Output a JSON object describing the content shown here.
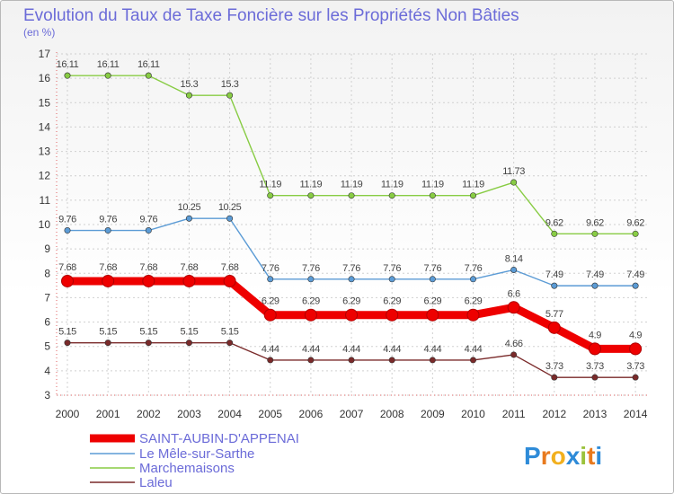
{
  "chart_data": {
    "type": "line",
    "title": "Evolution du Taux de Taxe Foncière sur les Propriétés Non Bâties",
    "subtitle": "(en %)",
    "xlabel": "",
    "ylabel": "(en %)",
    "ylim": [
      3,
      17
    ],
    "yticks": [
      "3",
      "4",
      "5",
      "6",
      "7",
      "8",
      "9",
      "10",
      "11",
      "12",
      "13",
      "14",
      "15",
      "16",
      "17"
    ],
    "grid": true,
    "legend_position": "bottom-left",
    "categories": [
      "2000",
      "2001",
      "2002",
      "2003",
      "2004",
      "2005",
      "2006",
      "2007",
      "2008",
      "2009",
      "2010",
      "2011",
      "2012",
      "2013",
      "2014"
    ],
    "series": [
      {
        "name": "SAINT-AUBIN-D'APPENAI",
        "color": "#ee0000",
        "emphasis": true,
        "values": [
          7.68,
          7.68,
          7.68,
          7.68,
          7.68,
          6.29,
          6.29,
          6.29,
          6.29,
          6.29,
          6.29,
          6.6,
          5.77,
          4.9,
          4.9
        ],
        "labels": [
          "7.68",
          "7.68",
          "7.68",
          "7.68",
          "7.68",
          "6.29",
          "6.29",
          "6.29",
          "6.29",
          "6.29",
          "6.29",
          "6.6",
          "5.77",
          "4.9",
          "4.9"
        ]
      },
      {
        "name": "Le Mêle-sur-Sarthe",
        "color": "#5b9bd5",
        "emphasis": false,
        "values": [
          9.76,
          9.76,
          9.76,
          10.25,
          10.25,
          7.76,
          7.76,
          7.76,
          7.76,
          7.76,
          7.76,
          8.14,
          7.49,
          7.49,
          7.49
        ],
        "labels": [
          "9.76",
          "9.76",
          "9.76",
          "10.25",
          "10.25",
          "7.76",
          "7.76",
          "7.76",
          "7.76",
          "7.76",
          "7.76",
          "8.14",
          "7.49",
          "7.49",
          "7.49"
        ]
      },
      {
        "name": "Marchemaisons",
        "color": "#88cc44",
        "emphasis": false,
        "values": [
          16.11,
          16.11,
          16.11,
          15.3,
          15.3,
          11.19,
          11.19,
          11.19,
          11.19,
          11.19,
          11.19,
          11.73,
          9.62,
          9.62,
          9.62
        ],
        "labels": [
          "16.11",
          "16.11",
          "16.11",
          "15.3",
          "15.3",
          "11.19",
          "11.19",
          "11.19",
          "11.19",
          "11.19",
          "11.19",
          "11.73",
          "9.62",
          "9.62",
          "9.62"
        ]
      },
      {
        "name": "Laleu",
        "color": "#7a2a2a",
        "emphasis": false,
        "values": [
          5.15,
          5.15,
          5.15,
          5.15,
          5.15,
          4.44,
          4.44,
          4.44,
          4.44,
          4.44,
          4.44,
          4.66,
          3.73,
          3.73,
          3.73
        ],
        "labels": [
          "5.15",
          "5.15",
          "5.15",
          "5.15",
          "5.15",
          "4.44",
          "4.44",
          "4.44",
          "4.44",
          "4.44",
          "4.44",
          "4.66",
          "3.73",
          "3.73",
          "3.73"
        ]
      }
    ]
  },
  "logo": {
    "text": "Proxiti",
    "letters": [
      "P",
      "r",
      "o",
      "x",
      "i",
      "t",
      "i"
    ],
    "colors": [
      "#2e8bd8",
      "#e87a1e",
      "#f2b01e",
      "#2e8bd8",
      "#9bc23c",
      "#e87a1e",
      "#2e8bd8"
    ]
  }
}
